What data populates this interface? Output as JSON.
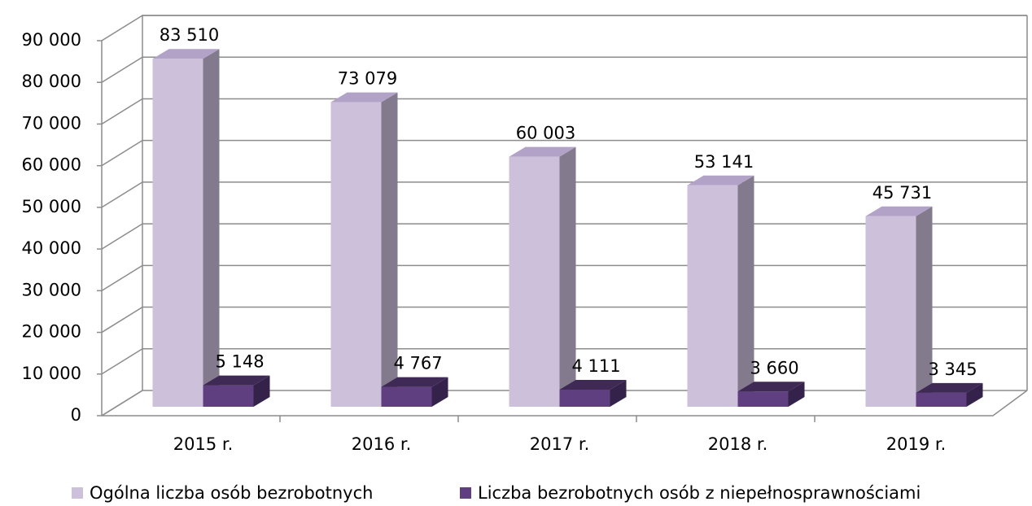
{
  "chart_data": {
    "type": "bar3d",
    "categories": [
      "2015 r.",
      "2016 r.",
      "2017 r.",
      "2018 r.",
      "2019 r."
    ],
    "series": [
      {
        "name": "Ogólna liczba osób bezrobotnych",
        "color": "#ccc0da",
        "values": [
          83510,
          73079,
          60003,
          53141,
          45731
        ],
        "value_labels": [
          "83 510",
          "73 079",
          "60 003",
          "53 141",
          "45 731"
        ]
      },
      {
        "name": "Liczba bezrobotnych osób z niepełnosprawnościami",
        "color": "#5f3f7f",
        "values": [
          5148,
          4767,
          4111,
          3660,
          3345
        ],
        "value_labels": [
          "5 148",
          "4 767",
          "4 111",
          "3 660",
          "3 345"
        ]
      }
    ],
    "ylim": [
      0,
      90000
    ],
    "yticks": [
      0,
      {
        "value": 10000,
        "label": "10 000"
      },
      {
        "value": 20000,
        "label": "20 000"
      },
      {
        "value": 30000,
        "label": "30 000"
      },
      {
        "value": 40000,
        "label": "40 000"
      },
      {
        "value": 50000,
        "label": "50 000"
      },
      {
        "value": 60000,
        "label": "60 000"
      },
      {
        "value": 70000,
        "label": "70 000"
      },
      {
        "value": 80000,
        "label": "80 000"
      },
      {
        "value": 90000,
        "label": "90 000"
      }
    ],
    "grid": true,
    "legend": "bottom"
  }
}
